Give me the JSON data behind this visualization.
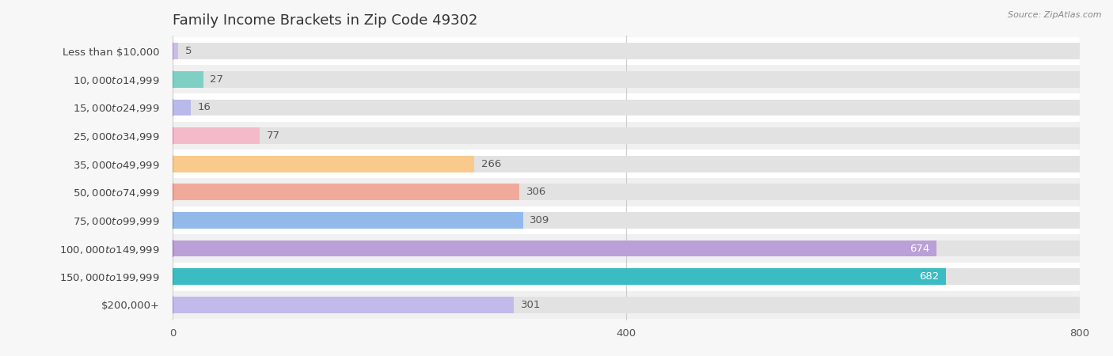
{
  "title": "Family Income Brackets in Zip Code 49302",
  "source": "Source: ZipAtlas.com",
  "categories": [
    "Less than $10,000",
    "$10,000 to $14,999",
    "$15,000 to $24,999",
    "$25,000 to $34,999",
    "$35,000 to $49,999",
    "$50,000 to $74,999",
    "$75,000 to $99,999",
    "$100,000 to $149,999",
    "$150,000 to $199,999",
    "$200,000+"
  ],
  "values": [
    5,
    27,
    16,
    77,
    266,
    306,
    309,
    674,
    682,
    301
  ],
  "bar_colors": [
    "#cbbde8",
    "#7ed0c5",
    "#b9b9eb",
    "#f5baca",
    "#fac98c",
    "#f1aa9a",
    "#92b9ea",
    "#baa0d6",
    "#3bbcc2",
    "#c2baea"
  ],
  "dot_colors": [
    "#a882d4",
    "#3db8aa",
    "#8888cc",
    "#e870a0",
    "#e89848",
    "#de6860",
    "#4888d0",
    "#8860bb",
    "#18a0aa",
    "#9888d0"
  ],
  "row_colors": [
    "#ffffff",
    "#f0f0f0"
  ],
  "background_color": "#f7f7f7",
  "bar_bg_color": "#e2e2e2",
  "xlim": [
    0,
    800
  ],
  "title_fontsize": 13,
  "label_fontsize": 9.5,
  "value_fontsize": 9.5,
  "source_fontsize": 8
}
